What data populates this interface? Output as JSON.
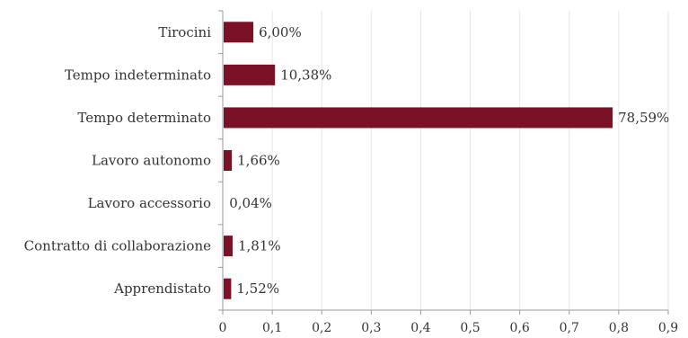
{
  "chart_data": {
    "type": "bar",
    "orientation": "horizontal",
    "categories": [
      "Tirocini",
      "Tempo indeterminato",
      "Tempo determinato",
      "Lavoro autonomo",
      "Lavoro accessorio",
      "Contratto di collaborazione",
      "Apprendistato"
    ],
    "values": [
      0.06,
      0.1038,
      0.7859,
      0.0166,
      0.0004,
      0.0181,
      0.0152
    ],
    "value_labels": [
      "6,00%",
      "10,38%",
      "78,59%",
      "1,66%",
      "0,04%",
      "1,81%",
      "1,52%"
    ],
    "xlim": [
      0,
      0.9
    ],
    "x_ticks": [
      "0",
      "0,1",
      "0,2",
      "0,3",
      "0,4",
      "0,5",
      "0,6",
      "0,7",
      "0,8",
      "0,9"
    ],
    "grid": true,
    "legend": false,
    "title": "",
    "xlabel": "",
    "ylabel": "",
    "colors": {
      "bar": "#7b1124",
      "grid": "#e6e6e6",
      "axis": "#999999"
    }
  }
}
